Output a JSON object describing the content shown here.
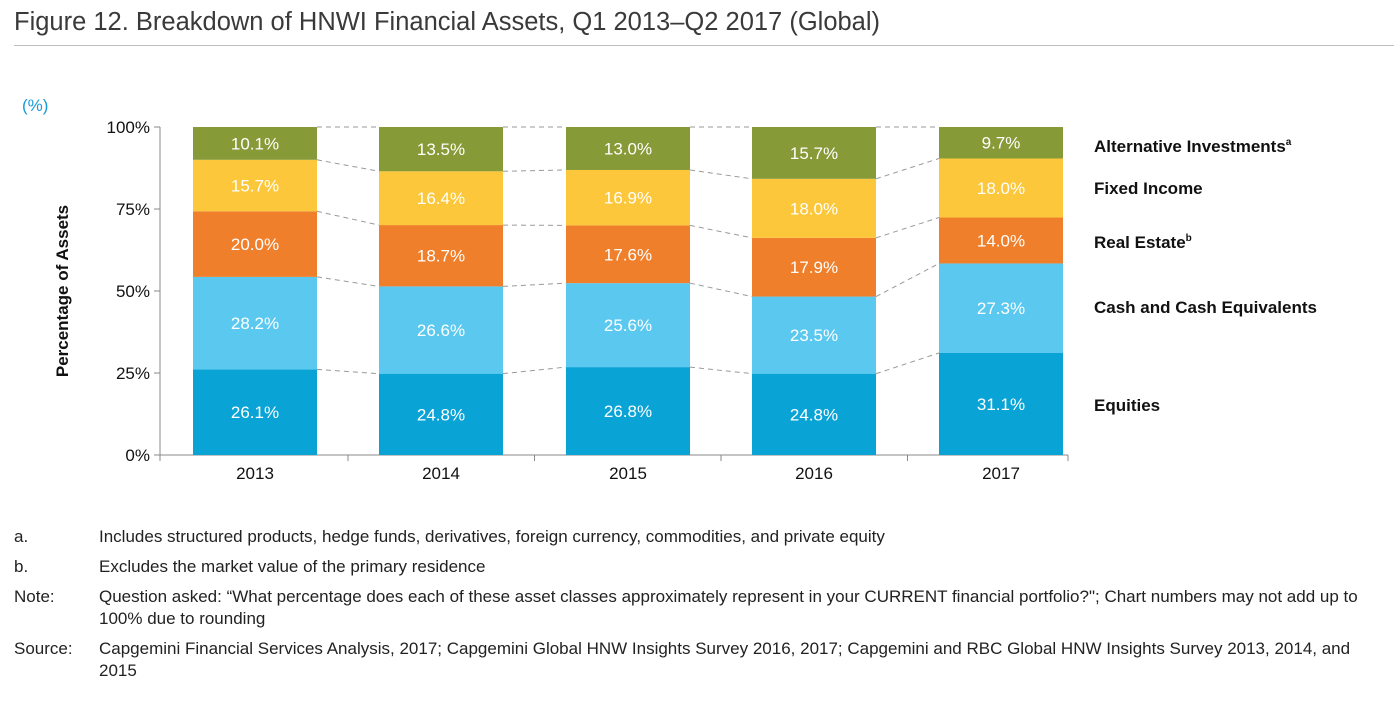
{
  "title": "Figure 12. Breakdown of HNWI Financial Assets, Q1 2013–Q2 2017 (Global)",
  "unit_label": "(%)",
  "chart_data": {
    "type": "bar",
    "stacked": true,
    "categories": [
      "2013",
      "2014",
      "2015",
      "2016",
      "2017"
    ],
    "ylabel": "Percentage of Assets",
    "ylim": [
      0,
      100
    ],
    "yticks": [
      "0%",
      "25%",
      "50%",
      "75%",
      "100%"
    ],
    "grid": false,
    "legend_position": "right",
    "series": [
      {
        "name": "Equities",
        "color": "#0aa3d6",
        "values": [
          26.1,
          24.8,
          26.8,
          24.8,
          31.1
        ],
        "labels": [
          "26.1%",
          "24.8%",
          "26.8%",
          "24.8%",
          "31.1%"
        ]
      },
      {
        "name": "Cash and Cash Equivalents",
        "color": "#5bc8f0",
        "values": [
          28.2,
          26.6,
          25.6,
          23.5,
          27.3
        ],
        "labels": [
          "28.2%",
          "26.6%",
          "25.6%",
          "23.5%",
          "27.3%"
        ]
      },
      {
        "name": "Real Estate",
        "sup": "b",
        "color": "#f07f2c",
        "values": [
          20.0,
          18.7,
          17.6,
          17.9,
          14.0
        ],
        "labels": [
          "20.0%",
          "18.7%",
          "17.6%",
          "17.9%",
          "14.0%"
        ]
      },
      {
        "name": "Fixed Income",
        "color": "#fcc73a",
        "values": [
          15.7,
          16.4,
          16.9,
          18.0,
          18.0
        ],
        "labels": [
          "15.7%",
          "16.4%",
          "16.9%",
          "18.0%",
          "18.0%"
        ]
      },
      {
        "name": "Alternative Investments",
        "sup": "a",
        "color": "#869a37",
        "values": [
          10.1,
          13.5,
          13.0,
          15.7,
          9.7
        ],
        "labels": [
          "10.1%",
          "13.5%",
          "13.0%",
          "15.7%",
          "9.7%"
        ]
      }
    ]
  },
  "notes": [
    {
      "key": "a.",
      "text": "Includes structured products, hedge funds, derivatives, foreign currency, commodities, and private equity"
    },
    {
      "key": "b.",
      "text": "Excludes the market value of the primary residence"
    },
    {
      "key": "Note:",
      "text": "Question asked: “What percentage does each of these asset classes approximately represent in your CURRENT financial portfolio?\"; Chart numbers may not add up to 100% due to rounding"
    },
    {
      "key": "Source:",
      "text": "Capgemini Financial Services Analysis, 2017; Capgemini Global HNW Insights Survey 2016, 2017; Capgemini and RBC Global HNW Insights Survey 2013, 2014, and 2015"
    }
  ]
}
